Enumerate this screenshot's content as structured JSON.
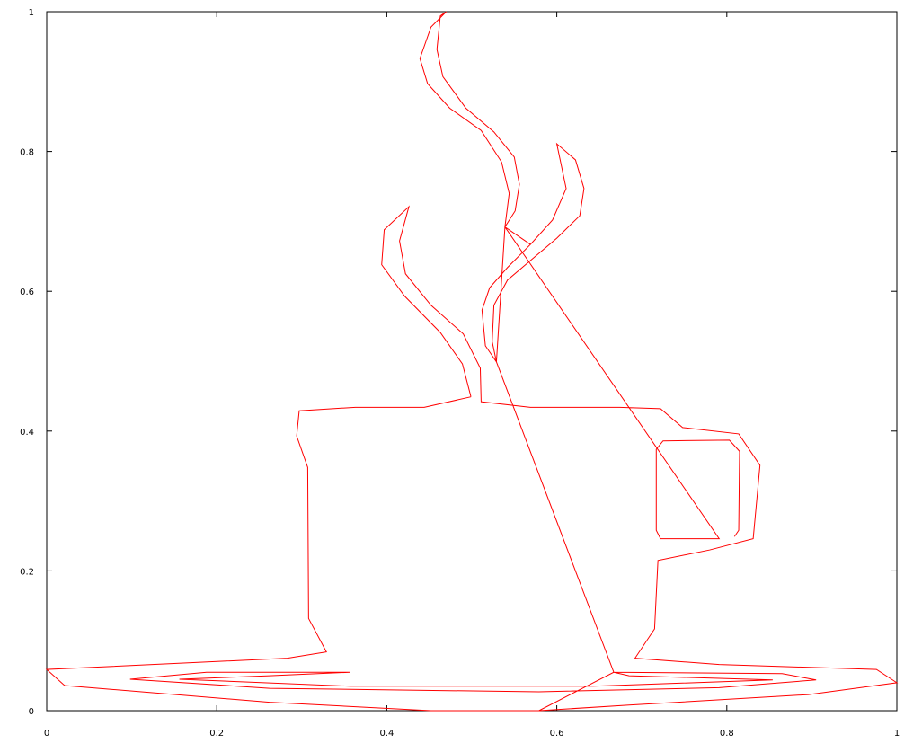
{
  "chart_data": {
    "type": "line",
    "color": "#ff0000",
    "x": [
      0.579,
      0.667,
      0.529,
      0.539,
      0.791,
      0.722,
      0.717,
      0.717,
      0.725,
      0.803,
      0.815,
      0.814,
      0.809,
      null,
      0.539,
      0.544,
      0.535,
      0.511,
      0.474,
      0.448,
      0.439,
      0.452,
      0.47,
      0.463,
      0.459,
      0.466,
      0.493,
      0.526,
      0.55,
      0.556,
      0.551,
      0.539,
      0.569,
      0.595,
      0.611,
      0.6,
      0.622,
      0.632,
      0.627,
      0.6,
      0.569,
      0.542,
      0.526,
      0.524,
      0.529,
      0.516,
      0.512,
      0.521,
      0.542,
      0.569,
      null,
      0.499,
      0.444,
      0.363,
      0.297,
      0.294,
      0.307,
      0.308,
      0.329,
      0.283,
      0,
      0.021,
      0.262,
      0.452,
      0.579,
      null,
      0.499,
      0.489,
      0.463,
      0.421,
      0.394,
      0.397,
      0.426,
      0.415,
      0.422,
      0.452,
      0.49,
      0.51,
      0.511,
      0.569,
      0.674,
      0.722,
      0.748,
      0.814,
      0.839,
      0.831,
      0.78,
      0.719,
      0.715,
      0.692,
      0.791,
      0.976,
      1,
      0.896,
      0.685,
      0.579,
      null,
      0.098,
      0.188,
      0.357,
      0.262,
      0.156,
      0.357,
      0.643,
      0.854,
      0.685,
      0.667,
      0.865,
      0.905,
      0.791,
      0.579,
      0.262,
      0.098
    ],
    "values": [
      0,
      0.055,
      0.499,
      0.692,
      0.246,
      0.246,
      0.258,
      0.374,
      0.386,
      0.387,
      0.371,
      0.258,
      0.249,
      null,
      0.692,
      0.74,
      0.785,
      0.83,
      0.862,
      0.897,
      0.933,
      0.978,
      1,
      0.994,
      0.946,
      0.907,
      0.862,
      0.828,
      0.792,
      0.753,
      0.715,
      0.692,
      0.667,
      0.702,
      0.747,
      0.811,
      0.788,
      0.747,
      0.708,
      0.676,
      0.644,
      0.616,
      0.58,
      0.528,
      0.499,
      0.522,
      0.573,
      0.605,
      0.634,
      0.667,
      null,
      0.449,
      0.434,
      0.434,
      0.429,
      0.393,
      0.348,
      0.132,
      0.084,
      0.075,
      0.059,
      0.036,
      0.012,
      0,
      0,
      null,
      0.449,
      0.496,
      0.541,
      0.593,
      0.638,
      0.688,
      0.721,
      0.672,
      0.625,
      0.58,
      0.539,
      0.49,
      0.442,
      0.434,
      0.434,
      0.432,
      0.405,
      0.396,
      0.351,
      0.246,
      0.23,
      0.215,
      0.117,
      0.075,
      0.066,
      0.059,
      0.04,
      0.023,
      0.008,
      0,
      null,
      0.045,
      0.055,
      0.055,
      0.05,
      0.045,
      0.035,
      0.035,
      0.044,
      0.05,
      0.055,
      0.053,
      0.044,
      0.033,
      0.027,
      0.032,
      0.045
    ],
    "xlim": [
      0,
      1
    ],
    "ylim": [
      0,
      1
    ],
    "xticks": [
      0,
      0.2,
      0.4,
      0.6,
      0.8,
      1
    ],
    "yticks": [
      0,
      0.2,
      0.4,
      0.6,
      0.8,
      1
    ]
  }
}
